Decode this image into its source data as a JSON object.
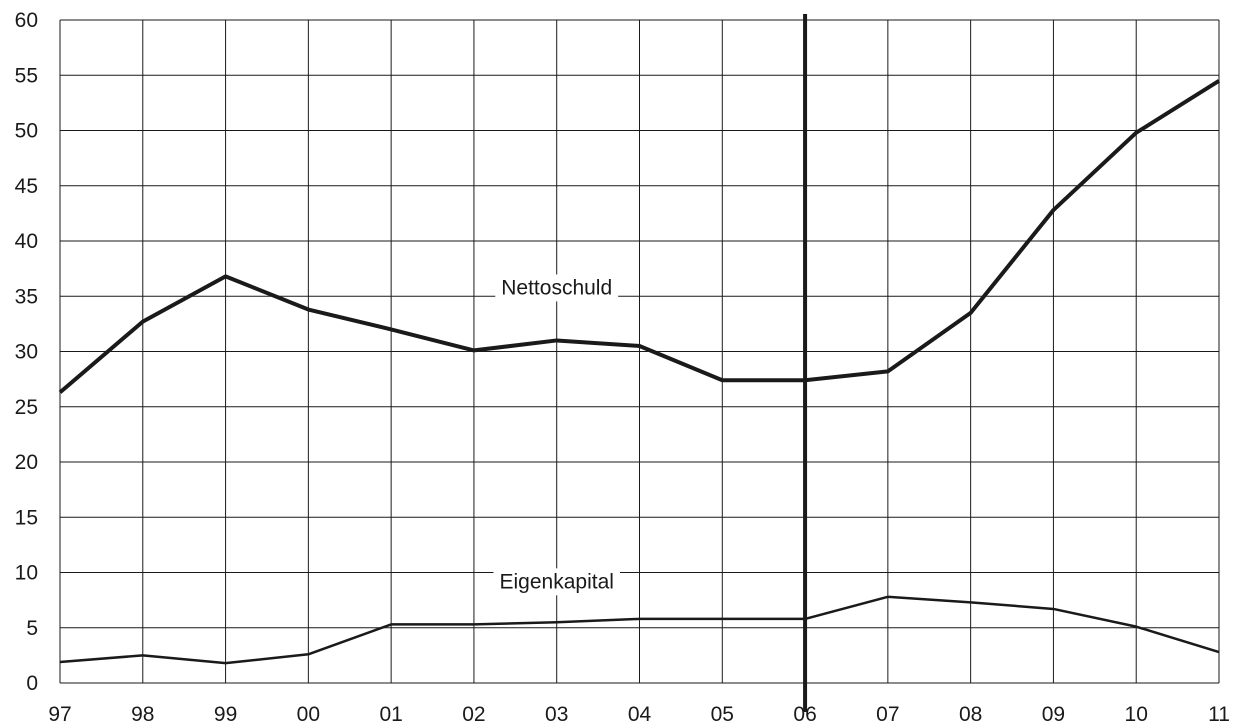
{
  "chart_data": {
    "type": "line",
    "title": "",
    "xlabel": "",
    "ylabel": "",
    "categories": [
      "97",
      "98",
      "99",
      "00",
      "01",
      "02",
      "03",
      "04",
      "05",
      "06",
      "07",
      "08",
      "09",
      "10",
      "11"
    ],
    "yticks": [
      "0",
      "5",
      "10",
      "15",
      "20",
      "25",
      "30",
      "35",
      "40",
      "45",
      "50",
      "55",
      "60"
    ],
    "ylim": [
      0,
      60
    ],
    "grid": true,
    "series": [
      {
        "name": "Nettoschuld",
        "values": [
          26.3,
          32.7,
          36.8,
          33.8,
          32.0,
          30.1,
          31.0,
          30.5,
          27.4,
          27.4,
          28.2,
          33.5,
          42.8,
          49.8,
          54.5
        ],
        "label_at_category": "03",
        "label_value": 35.8
      },
      {
        "name": "Eigenkapital",
        "values": [
          1.9,
          2.5,
          1.8,
          2.6,
          5.3,
          5.3,
          5.5,
          5.8,
          5.8,
          5.8,
          7.8,
          7.3,
          6.7,
          5.1,
          2.8
        ],
        "label_at_category": "03",
        "label_value": 9.2
      }
    ],
    "highlight_category": "06",
    "colors": {
      "line": "#1a1a1a",
      "grid": "#1a1a1a",
      "background": "#ffffff"
    }
  }
}
